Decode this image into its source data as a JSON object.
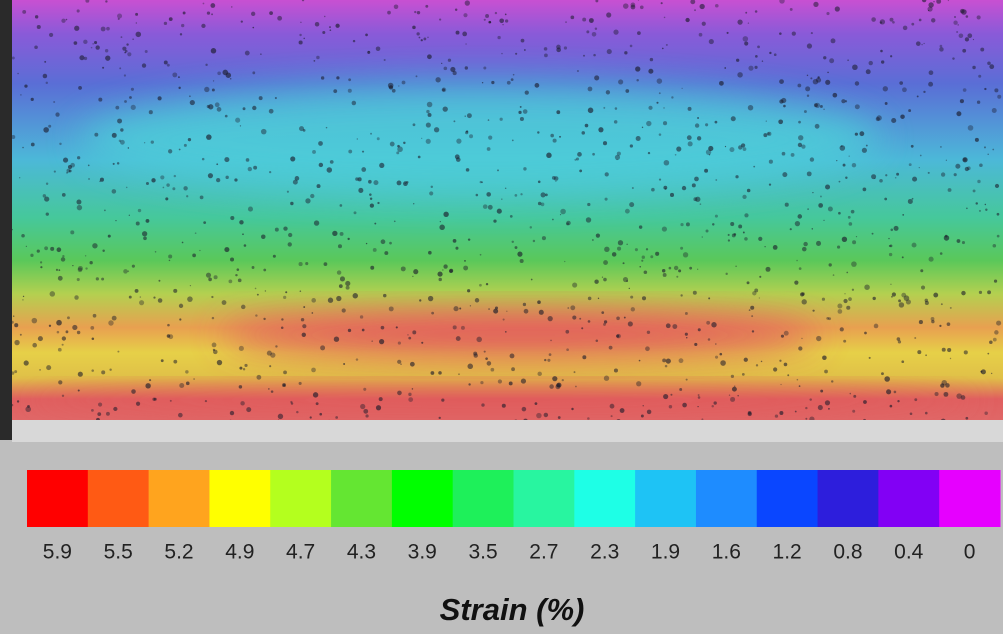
{
  "colorbar": {
    "colors": [
      "#ff0000",
      "#ff5a14",
      "#ffa41e",
      "#ffff00",
      "#b4ff1e",
      "#64e632",
      "#00ff00",
      "#1ef05a",
      "#28f5a0",
      "#1effe6",
      "#1ec3f5",
      "#1e8cff",
      "#0a46ff",
      "#2d1edc",
      "#8200f5",
      "#e600ff"
    ],
    "labels": [
      5.9,
      5.5,
      5.2,
      4.9,
      4.7,
      4.3,
      3.9,
      3.5,
      2.7,
      2.3,
      1.9,
      1.6,
      1.2,
      0.8,
      0.4,
      0
    ]
  },
  "axis_label": "Strain (%)"
}
